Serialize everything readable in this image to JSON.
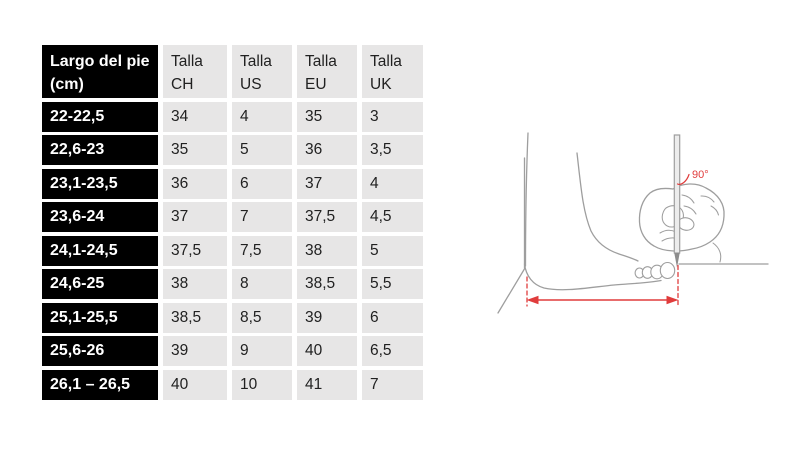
{
  "table": {
    "header": [
      "Largo del pie (cm)",
      "Talla CH",
      "Talla US",
      "Talla EU",
      "Talla UK"
    ],
    "rows": [
      [
        "22-22,5",
        "34",
        "4",
        "35",
        "3"
      ],
      [
        "22,6-23",
        "35",
        "5",
        "36",
        "3,5"
      ],
      [
        "23,1-23,5",
        "36",
        "6",
        "37",
        "4"
      ],
      [
        "23,6-24",
        "37",
        "7",
        "37,5",
        "4,5"
      ],
      [
        "24,1-24,5",
        "37,5",
        "7,5",
        "38",
        "5"
      ],
      [
        "24,6-25",
        "38",
        "8",
        "38,5",
        "5,5"
      ],
      [
        "25,1-25,5",
        "38,5",
        "8,5",
        "39",
        "6"
      ],
      [
        "25,6-26",
        "39",
        "9",
        "40",
        "6,5"
      ],
      [
        "26,1 – 26,5",
        "40",
        "10",
        "41",
        "7"
      ]
    ],
    "colors": {
      "row_header_bg": "#000000",
      "row_header_text": "#ffffff",
      "cell_bg": "#e7e6e6",
      "cell_text": "#212121"
    }
  },
  "illustration": {
    "angle_label": "90°",
    "accent_color": "#e03c3c",
    "outline_color": "#9e9e9e"
  }
}
